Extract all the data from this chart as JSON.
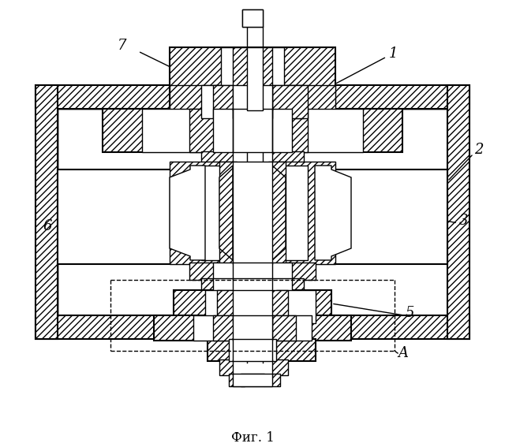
{
  "title": "Фиг. 1",
  "bg_color": "#ffffff",
  "line_color": "#000000",
  "figure_size": [
    6.4,
    5.67
  ],
  "dpi": 100
}
